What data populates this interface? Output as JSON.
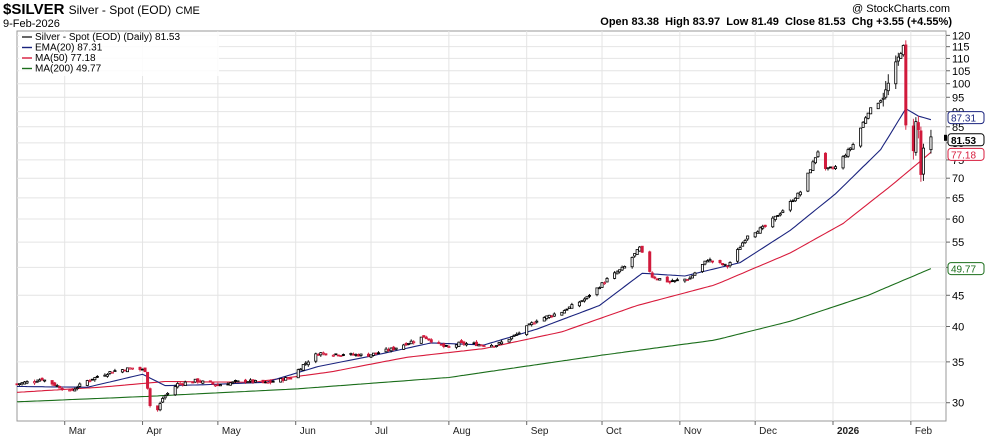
{
  "header": {
    "symbol": "$SILVER",
    "name": "Silver - Spot (EOD)",
    "exchange": "CME",
    "date": "9-Feb-2026",
    "copyright": "@ StockCharts.com",
    "ohlc": {
      "open_label": "Open",
      "open": "83.38",
      "high_label": "High",
      "high": "83.97",
      "low_label": "Low",
      "low": "81.49",
      "close_label": "Close",
      "close": "81.53",
      "chg_label": "Chg",
      "chg": "+3.55 (+4.55%)"
    }
  },
  "colors": {
    "up": "#000000",
    "down": "#d11a3c",
    "ema20": "#1a237e",
    "ma50": "#d81b3c",
    "ma200": "#1b6e1b",
    "grid": "#e4e4e4",
    "frame": "#999999"
  },
  "chart_data": {
    "type": "candlestick",
    "scale": "log",
    "ylim": [
      28,
      122
    ],
    "y_ticks": [
      30,
      35,
      40,
      45,
      50,
      55,
      60,
      65,
      70,
      75,
      80,
      85,
      90,
      95,
      100,
      105,
      110,
      115,
      120
    ],
    "x_labels": [
      "Mar",
      "Apr",
      "May",
      "Jun",
      "Jul",
      "Aug",
      "Sep",
      "Oct",
      "Nov",
      "Dec",
      "2026",
      "Feb"
    ],
    "legend": [
      {
        "key": "price",
        "label": "Silver - Spot (EOD) (Daily) 81.53"
      },
      {
        "key": "ema20",
        "label": "EMA(20) 87.31"
      },
      {
        "key": "ma50",
        "label": "MA(50) 77.18"
      },
      {
        "key": "ma200",
        "label": "MA(200) 49.77"
      }
    ],
    "last_tags": [
      {
        "key": "ema20",
        "value": "87.31"
      },
      {
        "key": "price",
        "value": "81.53"
      },
      {
        "key": "ma50",
        "value": "77.18"
      },
      {
        "key": "ma200",
        "value": "49.77"
      }
    ],
    "price_anchors": [
      [
        "2025-02-10",
        32.2
      ],
      [
        "2025-02-20",
        32.8
      ],
      [
        "2025-03-03",
        31.3
      ],
      [
        "2025-03-10",
        32.6
      ],
      [
        "2025-03-20",
        33.8
      ],
      [
        "2025-03-28",
        34.2
      ],
      [
        "2025-04-02",
        33.9
      ],
      [
        "2025-04-03",
        31.8
      ],
      [
        "2025-04-04",
        29.7
      ],
      [
        "2025-04-07",
        29.2
      ],
      [
        "2025-04-09",
        30.5
      ],
      [
        "2025-04-15",
        32.2
      ],
      [
        "2025-04-22",
        32.6
      ],
      [
        "2025-05-01",
        32.1
      ],
      [
        "2025-05-12",
        32.6
      ],
      [
        "2025-05-20",
        32.3
      ],
      [
        "2025-05-30",
        33.0
      ],
      [
        "2025-06-04",
        34.6
      ],
      [
        "2025-06-10",
        36.2
      ],
      [
        "2025-06-20",
        36.0
      ],
      [
        "2025-06-30",
        35.9
      ],
      [
        "2025-07-10",
        36.8
      ],
      [
        "2025-07-22",
        38.5
      ],
      [
        "2025-07-31",
        36.9
      ],
      [
        "2025-08-05",
        37.5
      ],
      [
        "2025-08-20",
        37.3
      ],
      [
        "2025-08-28",
        38.8
      ],
      [
        "2025-09-05",
        41.0
      ],
      [
        "2025-09-15",
        42.3
      ],
      [
        "2025-09-25",
        44.6
      ],
      [
        "2025-10-03",
        47.8
      ],
      [
        "2025-10-10",
        50.1
      ],
      [
        "2025-10-16",
        53.8
      ],
      [
        "2025-10-21",
        48.3
      ],
      [
        "2025-10-28",
        47.3
      ],
      [
        "2025-11-05",
        48.0
      ],
      [
        "2025-11-12",
        51.5
      ],
      [
        "2025-11-20",
        50.2
      ],
      [
        "2025-11-28",
        56.5
      ],
      [
        "2025-12-05",
        58.3
      ],
      [
        "2025-12-12",
        62.0
      ],
      [
        "2025-12-19",
        66.5
      ],
      [
        "2025-12-26",
        77.5
      ],
      [
        "2025-12-29",
        72.2
      ],
      [
        "2026-01-02",
        73.0
      ],
      [
        "2026-01-09",
        79.5
      ],
      [
        "2026-01-15",
        90.0
      ],
      [
        "2026-01-21",
        95.0
      ],
      [
        "2026-01-26",
        108.0
      ],
      [
        "2026-01-29",
        115.0
      ],
      [
        "2026-01-30",
        85.3
      ],
      [
        "2026-02-02",
        78.0
      ],
      [
        "2026-02-03",
        86.5
      ],
      [
        "2026-02-04",
        84.0
      ],
      [
        "2026-02-05",
        71.0
      ],
      [
        "2026-02-06",
        77.98
      ],
      [
        "2026-02-09",
        81.53
      ]
    ],
    "ma_anchors": {
      "ema20": [
        [
          "2025-02-10",
          31.9
        ],
        [
          "2025-03-10",
          31.8
        ],
        [
          "2025-04-01",
          33.4
        ],
        [
          "2025-04-10",
          32.0
        ],
        [
          "2025-04-25",
          32.1
        ],
        [
          "2025-05-20",
          32.4
        ],
        [
          "2025-06-10",
          34.4
        ],
        [
          "2025-06-30",
          35.7
        ],
        [
          "2025-07-25",
          37.6
        ],
        [
          "2025-08-15",
          37.3
        ],
        [
          "2025-09-05",
          39.6
        ],
        [
          "2025-09-30",
          43.3
        ],
        [
          "2025-10-17",
          48.9
        ],
        [
          "2025-11-03",
          48.4
        ],
        [
          "2025-11-25",
          50.9
        ],
        [
          "2025-12-15",
          57.5
        ],
        [
          "2026-01-02",
          66.0
        ],
        [
          "2026-01-20",
          78.0
        ],
        [
          "2026-01-30",
          91.0
        ],
        [
          "2026-02-04",
          88.5
        ],
        [
          "2026-02-09",
          87.31
        ]
      ],
      "ma50": [
        [
          "2025-02-10",
          31.2
        ],
        [
          "2025-03-15",
          31.8
        ],
        [
          "2025-04-10",
          32.5
        ],
        [
          "2025-05-15",
          32.4
        ],
        [
          "2025-06-15",
          33.7
        ],
        [
          "2025-07-15",
          35.6
        ],
        [
          "2025-08-15",
          36.8
        ],
        [
          "2025-09-15",
          39.2
        ],
        [
          "2025-10-15",
          43.3
        ],
        [
          "2025-11-15",
          46.8
        ],
        [
          "2025-12-15",
          52.8
        ],
        [
          "2026-01-05",
          59.0
        ],
        [
          "2026-01-25",
          68.5
        ],
        [
          "2026-02-09",
          77.18
        ]
      ],
      "ma200": [
        [
          "2025-02-10",
          30.1
        ],
        [
          "2025-04-01",
          30.7
        ],
        [
          "2025-06-01",
          31.6
        ],
        [
          "2025-08-01",
          33.0
        ],
        [
          "2025-10-01",
          35.9
        ],
        [
          "2025-11-15",
          38.0
        ],
        [
          "2025-12-15",
          40.8
        ],
        [
          "2026-01-15",
          45.0
        ],
        [
          "2026-02-09",
          49.77
        ]
      ]
    }
  }
}
